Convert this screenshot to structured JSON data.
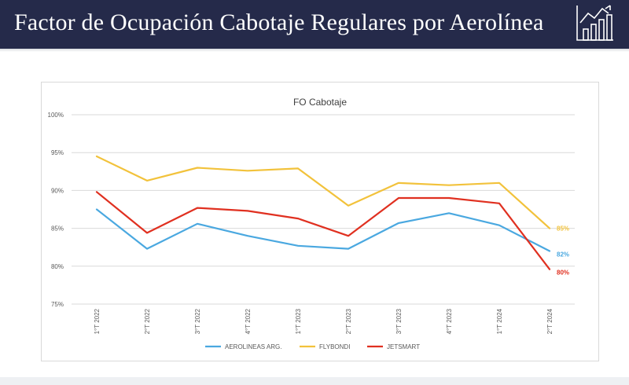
{
  "header": {
    "title": "Factor de Ocupación Cabotaje Regulares por Aerolínea",
    "logo_icon": "bar-chart-trend-icon",
    "background": "#252a4a"
  },
  "chart_data": {
    "type": "line",
    "title": "FO Cabotaje",
    "xlabel": "",
    "ylabel": "",
    "categories": [
      "1°T 2022",
      "2°T 2022",
      "3°T 2022",
      "4°T 2022",
      "1°T 2023",
      "2°T 2023",
      "3°T 2023",
      "4°T 2023",
      "1°T 2024",
      "2°T 2024"
    ],
    "ylim": [
      75,
      100
    ],
    "yticks": [
      75,
      80,
      85,
      90,
      95,
      100
    ],
    "ytick_labels": [
      "75%",
      "80%",
      "85%",
      "90%",
      "95%",
      "100%"
    ],
    "grid": true,
    "legend_position": "bottom",
    "series": [
      {
        "name": "AEROLINEAS ARG.",
        "color": "#4aa8e0",
        "values": [
          87.5,
          82.3,
          85.6,
          84.0,
          82.7,
          82.3,
          85.7,
          87.0,
          85.4,
          82.0
        ],
        "end_label": "82%"
      },
      {
        "name": "FLYBONDI",
        "color": "#f2c23b",
        "values": [
          94.5,
          91.3,
          93.0,
          92.6,
          92.9,
          88.0,
          91.0,
          90.7,
          91.0,
          85.0
        ],
        "end_label": "85%"
      },
      {
        "name": "JETSMART",
        "color": "#e03020",
        "values": [
          89.8,
          84.4,
          87.7,
          87.3,
          86.3,
          84.0,
          89.0,
          89.0,
          88.3,
          79.6
        ],
        "end_label": "80%"
      }
    ]
  }
}
